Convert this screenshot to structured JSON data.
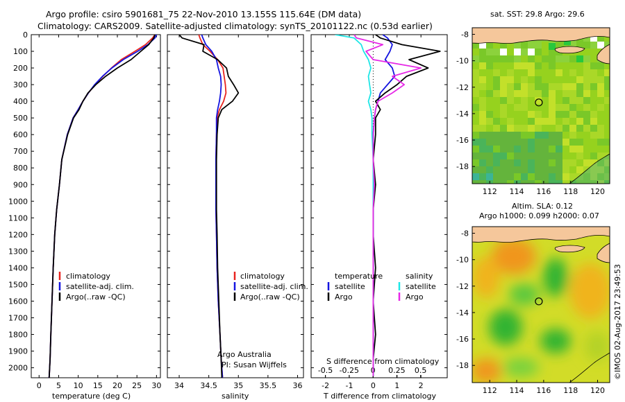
{
  "header": {
    "line1": "Argo profile: csiro 5901681_75 22-Nov-2010 13.155S 115.64E (DM data)",
    "line2": "Climatology: CARS2009. Satellite-adjusted climatology: synTS_20101122.nc (0.53d earlier)"
  },
  "colors": {
    "climatology": "#e8231e",
    "satellite": "#1414e0",
    "argo": "#000000",
    "sal_satellite": "#1ee6e6",
    "sal_argo": "#e628e6"
  },
  "chart_data": [
    {
      "type": "line",
      "xlabel": "temperature (deg C)",
      "ylabel": "",
      "xlim": [
        -2,
        31
      ],
      "ylim": [
        2060,
        0
      ],
      "xticks": [
        0,
        5,
        10,
        15,
        20,
        25,
        30
      ],
      "yticks": [
        0,
        100,
        200,
        300,
        400,
        500,
        600,
        700,
        800,
        900,
        1000,
        1100,
        1200,
        1300,
        1400,
        1500,
        1600,
        1700,
        1800,
        1900,
        2000
      ],
      "legend_position": "lower-center",
      "series": [
        {
          "name": "climatology",
          "role": "climatology",
          "x": [
            29.6,
            29.0,
            27.2,
            24.5,
            21.0,
            18.5,
            16.3,
            14.3,
            12.6,
            11.2,
            10.0,
            8.7,
            7.2,
            5.8,
            5.2,
            4.5,
            4.0,
            3.6,
            3.3,
            3.0,
            2.8,
            2.6,
            2.5
          ],
          "y": [
            0,
            20,
            60,
            100,
            150,
            200,
            250,
            300,
            350,
            400,
            450,
            500,
            600,
            750,
            900,
            1050,
            1200,
            1400,
            1600,
            1800,
            1950,
            2050,
            2060
          ]
        },
        {
          "name": "satellite-adj. clim.",
          "role": "satellite",
          "x": [
            30.0,
            29.6,
            27.8,
            25.2,
            21.5,
            18.6,
            16.2,
            14.2,
            12.6,
            11.2,
            10.0,
            8.7,
            7.2,
            5.8,
            5.2,
            4.5,
            4.0,
            3.6,
            3.3,
            3.0,
            2.8,
            2.6,
            2.5
          ],
          "y": [
            0,
            20,
            60,
            100,
            150,
            200,
            250,
            300,
            350,
            400,
            450,
            500,
            600,
            750,
            900,
            1050,
            1200,
            1400,
            1600,
            1800,
            1950,
            2050,
            2060
          ]
        },
        {
          "name": "Argo(..raw -QC)",
          "role": "argo",
          "x": [
            29.6,
            29.3,
            28.0,
            26.0,
            23.5,
            20.0,
            17.0,
            14.5,
            12.5,
            11.2,
            10.2,
            8.8,
            7.3,
            5.8,
            5.2,
            4.5,
            4.0,
            3.6,
            3.3,
            3.0,
            2.8,
            2.6,
            2.6
          ],
          "y": [
            0,
            20,
            60,
            100,
            150,
            200,
            250,
            300,
            350,
            400,
            450,
            500,
            600,
            750,
            900,
            1050,
            1200,
            1400,
            1600,
            1800,
            1950,
            2050,
            2060
          ]
        }
      ]
    },
    {
      "type": "line",
      "xlabel": "salinity",
      "ylabel": "",
      "xlim": [
        33.8,
        36.1
      ],
      "ylim": [
        2060,
        0
      ],
      "xticks": [
        34,
        34.5,
        35,
        35.5,
        36
      ],
      "xticklabels": [
        "34",
        "34.5",
        "35",
        "35.5",
        "36"
      ],
      "legend_position": "lower-right",
      "annotations": [
        "Argo Australia",
        "PI: Susan Wijffels"
      ],
      "series": [
        {
          "name": "climatology",
          "role": "climatology",
          "x": [
            34.33,
            34.35,
            34.4,
            34.52,
            34.65,
            34.74,
            34.76,
            34.78,
            34.79,
            34.75,
            34.68,
            34.64,
            34.63,
            34.62,
            34.62,
            34.62,
            34.63,
            34.64,
            34.66,
            34.69,
            34.71,
            34.73,
            34.73
          ],
          "y": [
            0,
            20,
            60,
            100,
            150,
            200,
            250,
            300,
            350,
            400,
            450,
            500,
            600,
            750,
            900,
            1050,
            1200,
            1400,
            1600,
            1800,
            1950,
            2050,
            2060
          ]
        },
        {
          "name": "satellite-adj. clim.",
          "role": "satellite",
          "x": [
            34.38,
            34.4,
            34.45,
            34.55,
            34.63,
            34.66,
            34.7,
            34.71,
            34.7,
            34.68,
            34.65,
            34.63,
            34.63,
            34.62,
            34.62,
            34.62,
            34.63,
            34.64,
            34.66,
            34.69,
            34.71,
            34.73,
            34.73
          ],
          "y": [
            0,
            20,
            60,
            100,
            150,
            200,
            250,
            300,
            350,
            400,
            450,
            500,
            600,
            750,
            900,
            1050,
            1200,
            1400,
            1600,
            1800,
            1950,
            2050,
            2060
          ]
        },
        {
          "name": "Argo(..raw -QC)",
          "role": "argo",
          "x": [
            34.0,
            34.05,
            34.42,
            34.4,
            34.65,
            34.8,
            34.83,
            34.92,
            35.0,
            34.9,
            34.72,
            34.66,
            34.64,
            34.63,
            34.63,
            34.63,
            34.64,
            34.65,
            34.67,
            34.69,
            34.71,
            34.72,
            34.72
          ],
          "y": [
            0,
            20,
            60,
            100,
            150,
            200,
            250,
            300,
            350,
            400,
            450,
            500,
            600,
            750,
            900,
            1050,
            1200,
            1400,
            1600,
            1800,
            1950,
            2050,
            2060
          ]
        }
      ]
    },
    {
      "type": "line",
      "xlabel": "T difference from climatology",
      "xlabel_top": "S difference from climatology",
      "ylabel": "",
      "xlim": [
        -2.6,
        3.1
      ],
      "ylim": [
        2060,
        0
      ],
      "xticks": [
        -2,
        -1,
        0,
        1,
        2
      ],
      "xticks_top": [
        -0.5,
        -0.25,
        0,
        0.25,
        0.5
      ],
      "xticklabels_top": [
        "-0.5",
        "-0.25",
        "0",
        "0.25",
        "0.5"
      ],
      "legend_position": "lower-center",
      "legend_headers": [
        "temperature",
        "salinity"
      ],
      "series": [
        {
          "name": "satellite",
          "group": "temperature",
          "role": "satellite",
          "x": [
            0.4,
            0.6,
            0.8,
            0.7,
            0.5,
            0.8,
            0.9,
            0.6,
            0.3,
            0.2,
            0.1,
            0.05,
            0.0,
            0.0,
            0.0,
            0.0,
            0.0,
            0.0,
            0.0,
            0.0,
            0.0,
            0.0
          ],
          "y": [
            0,
            20,
            60,
            100,
            150,
            200,
            250,
            300,
            350,
            400,
            450,
            500,
            600,
            750,
            900,
            1050,
            1200,
            1400,
            1600,
            1800,
            1950,
            2050
          ]
        },
        {
          "name": "Argo",
          "group": "temperature",
          "role": "argo",
          "x": [
            0.1,
            0.3,
            1.2,
            2.8,
            1.5,
            2.3,
            1.4,
            1.0,
            0.5,
            0.1,
            0.3,
            0.1,
            0.1,
            0.0,
            0.1,
            0.0,
            0.0,
            0.1,
            0.0,
            0.1,
            0.0,
            0.0
          ],
          "y": [
            0,
            20,
            60,
            100,
            150,
            200,
            250,
            300,
            350,
            400,
            450,
            500,
            600,
            750,
            900,
            1050,
            1200,
            1400,
            1600,
            1800,
            1950,
            2050
          ]
        },
        {
          "name": "satellite",
          "group": "salinity",
          "role": "sal_satellite",
          "x": [
            -1.6,
            -0.8,
            -0.5,
            -0.4,
            -0.2,
            -0.1,
            -0.2,
            -0.15,
            -0.1,
            -0.2,
            -0.1,
            -0.05,
            -0.05,
            0.0,
            0.0,
            0.0,
            0.0,
            0.0,
            0.0,
            0.0,
            0.0,
            0.0
          ],
          "y": [
            0,
            20,
            60,
            100,
            150,
            200,
            250,
            300,
            350,
            400,
            450,
            500,
            600,
            750,
            900,
            1050,
            1200,
            1400,
            1600,
            1800,
            1950,
            2050
          ]
        },
        {
          "name": "Argo",
          "group": "salinity",
          "role": "sal_argo",
          "x": [
            -0.8,
            -0.7,
            0.4,
            -0.3,
            0.0,
            2.0,
            0.8,
            1.3,
            0.8,
            0.2,
            0.1,
            0.05,
            0.0,
            0.0,
            0.05,
            0.0,
            0.0,
            0.0,
            0.0,
            0.0,
            0.0,
            0.0
          ],
          "y": [
            0,
            20,
            60,
            100,
            150,
            200,
            250,
            300,
            350,
            400,
            450,
            500,
            600,
            750,
            900,
            1050,
            1200,
            1400,
            1600,
            1800,
            1950,
            2050
          ]
        }
      ]
    },
    {
      "type": "heatmap",
      "title": "sat. SST: 29.8 Argo: 29.6",
      "xticks": [
        112,
        114,
        116,
        118,
        120
      ],
      "yticks": [
        -8,
        -10,
        -12,
        -14,
        -16,
        -18
      ],
      "xlim": [
        110.7,
        120.9
      ],
      "ylim": [
        -19.3,
        -7.5
      ],
      "marker": {
        "lon": 115.64,
        "lat": -13.155
      }
    },
    {
      "type": "heatmap",
      "title": "Altim. SLA: 0.12",
      "subtitle": "Argo h1000: 0.099 h2000: 0.07",
      "xticks": [
        112,
        114,
        116,
        118,
        120
      ],
      "yticks": [
        -8,
        -10,
        -12,
        -14,
        -16,
        -18
      ],
      "xlim": [
        110.7,
        120.9
      ],
      "ylim": [
        -19.3,
        -7.5
      ],
      "marker": {
        "lon": 115.64,
        "lat": -13.155
      }
    }
  ],
  "watermark": "©IMOS 02-Aug-2017 23:49:53"
}
